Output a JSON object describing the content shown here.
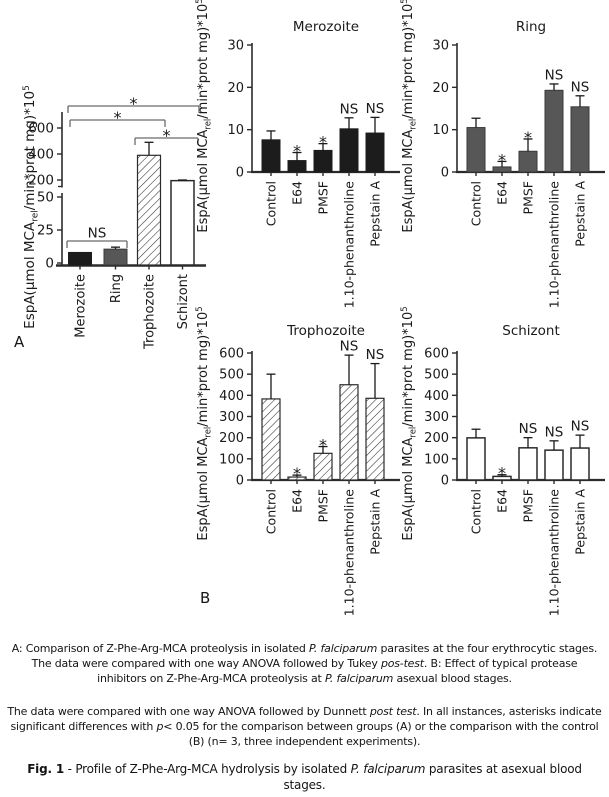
{
  "panel_labels": {
    "a": "A",
    "b": "B"
  },
  "y_axis_label": {
    "main": "EspA(μmol MCA",
    "sub": "rel",
    "rest": "/min*prot mg)*10",
    "sup": "5",
    "plain": "EspA(μmol MCA_rel/min*prot mg)*10^5"
  },
  "colors": {
    "text": "#1a1a1a",
    "axis": "#2b2b2b",
    "bracket": "#6b6b6b",
    "bar_black": "#1c1c1c",
    "bar_gray": "#575757",
    "bar_white": "#ffffff",
    "bar_outline": "#2a2a2a",
    "hatch_line": "#2f2f2f"
  },
  "chart_data": [
    {
      "id": "stages",
      "panel": "A",
      "type": "bar",
      "title": "",
      "categories": [
        "Merozoite",
        "Ring",
        "Trophozoite",
        "Schizont"
      ],
      "values": [
        8,
        10.5,
        390,
        195
      ],
      "errors": [
        0,
        1.5,
        100,
        5
      ],
      "bar_styles": [
        "black",
        "gray",
        "hatch",
        "white"
      ],
      "ylabel": "EspA(μmol MCA_rel/min*prot mg)*10^5",
      "y_axis": {
        "broken": true,
        "lower_ticks": [
          0,
          25,
          50
        ],
        "upper_ticks": [
          200,
          400,
          600
        ]
      },
      "legend": "none",
      "comparisons": [
        {
          "from": "Merozoite",
          "to": "Schizont",
          "label": "*"
        },
        {
          "from": "Merozoite",
          "to": "Trophozoite",
          "label": "*"
        },
        {
          "from": "Trophozoite",
          "to": "Schizont",
          "label": "*"
        },
        {
          "from": "Merozoite",
          "to": "Ring",
          "label": "NS"
        }
      ]
    },
    {
      "id": "merozoite",
      "panel": "B",
      "type": "bar",
      "title": "Merozoite",
      "bar_style": "black",
      "categories": [
        "Control",
        "E64",
        "PMSF",
        "1.10-phenanthroline",
        "Pepstain A"
      ],
      "values": [
        7.6,
        2.7,
        5.1,
        10.2,
        9.2
      ],
      "errors": [
        2.1,
        1.9,
        1.6,
        2.6,
        3.7
      ],
      "significance": [
        "",
        "*",
        "*",
        "NS",
        "NS"
      ],
      "ylim": [
        0,
        30
      ],
      "yticks": [
        0,
        10,
        20,
        30
      ],
      "ylabel": "EspA(μmol MCA_rel/min*prot mg)*10^5"
    },
    {
      "id": "ring",
      "panel": "B",
      "type": "bar",
      "title": "Ring",
      "bar_style": "gray",
      "categories": [
        "Control",
        "E64",
        "PMSF",
        "1.10-phenanthroline",
        "Pepstain A"
      ],
      "values": [
        10.5,
        1.2,
        4.9,
        19.3,
        15.4
      ],
      "errors": [
        2.2,
        1.3,
        2.9,
        1.5,
        2.6
      ],
      "significance": [
        "",
        "*",
        "*",
        "NS",
        "NS"
      ],
      "ylim": [
        0,
        30
      ],
      "yticks": [
        0,
        10,
        20,
        30
      ],
      "ylabel": "EspA(μmol MCA_rel/min*prot mg)*10^5"
    },
    {
      "id": "trophozoite",
      "panel": "B",
      "type": "bar",
      "title": "Trophozoite",
      "bar_style": "hatch",
      "categories": [
        "Control",
        "E64",
        "PMSF",
        "1.10-phenanthroline",
        "Pepstain A"
      ],
      "values": [
        383,
        14,
        126,
        450,
        386
      ],
      "errors": [
        117,
        9,
        32,
        140,
        164
      ],
      "significance": [
        "",
        "*",
        "*",
        "NS",
        "NS"
      ],
      "ylim": [
        0,
        600
      ],
      "yticks": [
        0,
        100,
        200,
        300,
        400,
        500,
        600
      ],
      "ylabel": "EspA(μmol MCA_rel/min*prot mg)*10^5"
    },
    {
      "id": "schizont",
      "panel": "B",
      "type": "bar",
      "title": "Schizont",
      "bar_style": "white",
      "categories": [
        "Control",
        "E64",
        "PMSF",
        "1.10-phenanthroline",
        "Pepstain A"
      ],
      "values": [
        199,
        17,
        152,
        141,
        151
      ],
      "errors": [
        41,
        8,
        48,
        44,
        61
      ],
      "significance": [
        "",
        "*",
        "NS",
        "NS",
        "NS"
      ],
      "ylim": [
        0,
        600
      ],
      "yticks": [
        0,
        100,
        200,
        300,
        400,
        500,
        600
      ],
      "ylabel": "EspA(μmol MCA_rel/min*prot mg)*10^5"
    }
  ],
  "caption": {
    "para1": [
      {
        "t": "A: Comparison of Z-Phe-Arg-MCA proteolysis in isolated "
      },
      {
        "t": "P. falciparum",
        "i": true
      },
      {
        "t": " parasites at the four erythrocytic stages. The data were compared with one way ANOVA followed by Tukey "
      },
      {
        "t": "pos-test",
        "i": true
      },
      {
        "t": ". B: Effect of typical protease inhibitors on Z-Phe-Arg-MCA proteolysis at "
      },
      {
        "t": "P. falciparum",
        "i": true
      },
      {
        "t": " asexual blood stages."
      }
    ],
    "para2": [
      {
        "t": "The data were compared with one way ANOVA followed by Dunnett "
      },
      {
        "t": "post test",
        "i": true
      },
      {
        "t": ". In all instances, asterisks indicate significant differences with "
      },
      {
        "t": "p",
        "i": true
      },
      {
        "t": "< 0.05 for the comparison between groups (A) or the comparison with the control (B) (n= 3, three independent experiments)."
      }
    ],
    "fig": [
      {
        "t": "Fig. 1",
        "b": true
      },
      {
        "t": " - Profile of Z-Phe-Arg-MCA hydrolysis by isolated "
      },
      {
        "t": "P. falciparum",
        "i": true
      },
      {
        "t": " parasites at asexual blood stages."
      }
    ]
  }
}
